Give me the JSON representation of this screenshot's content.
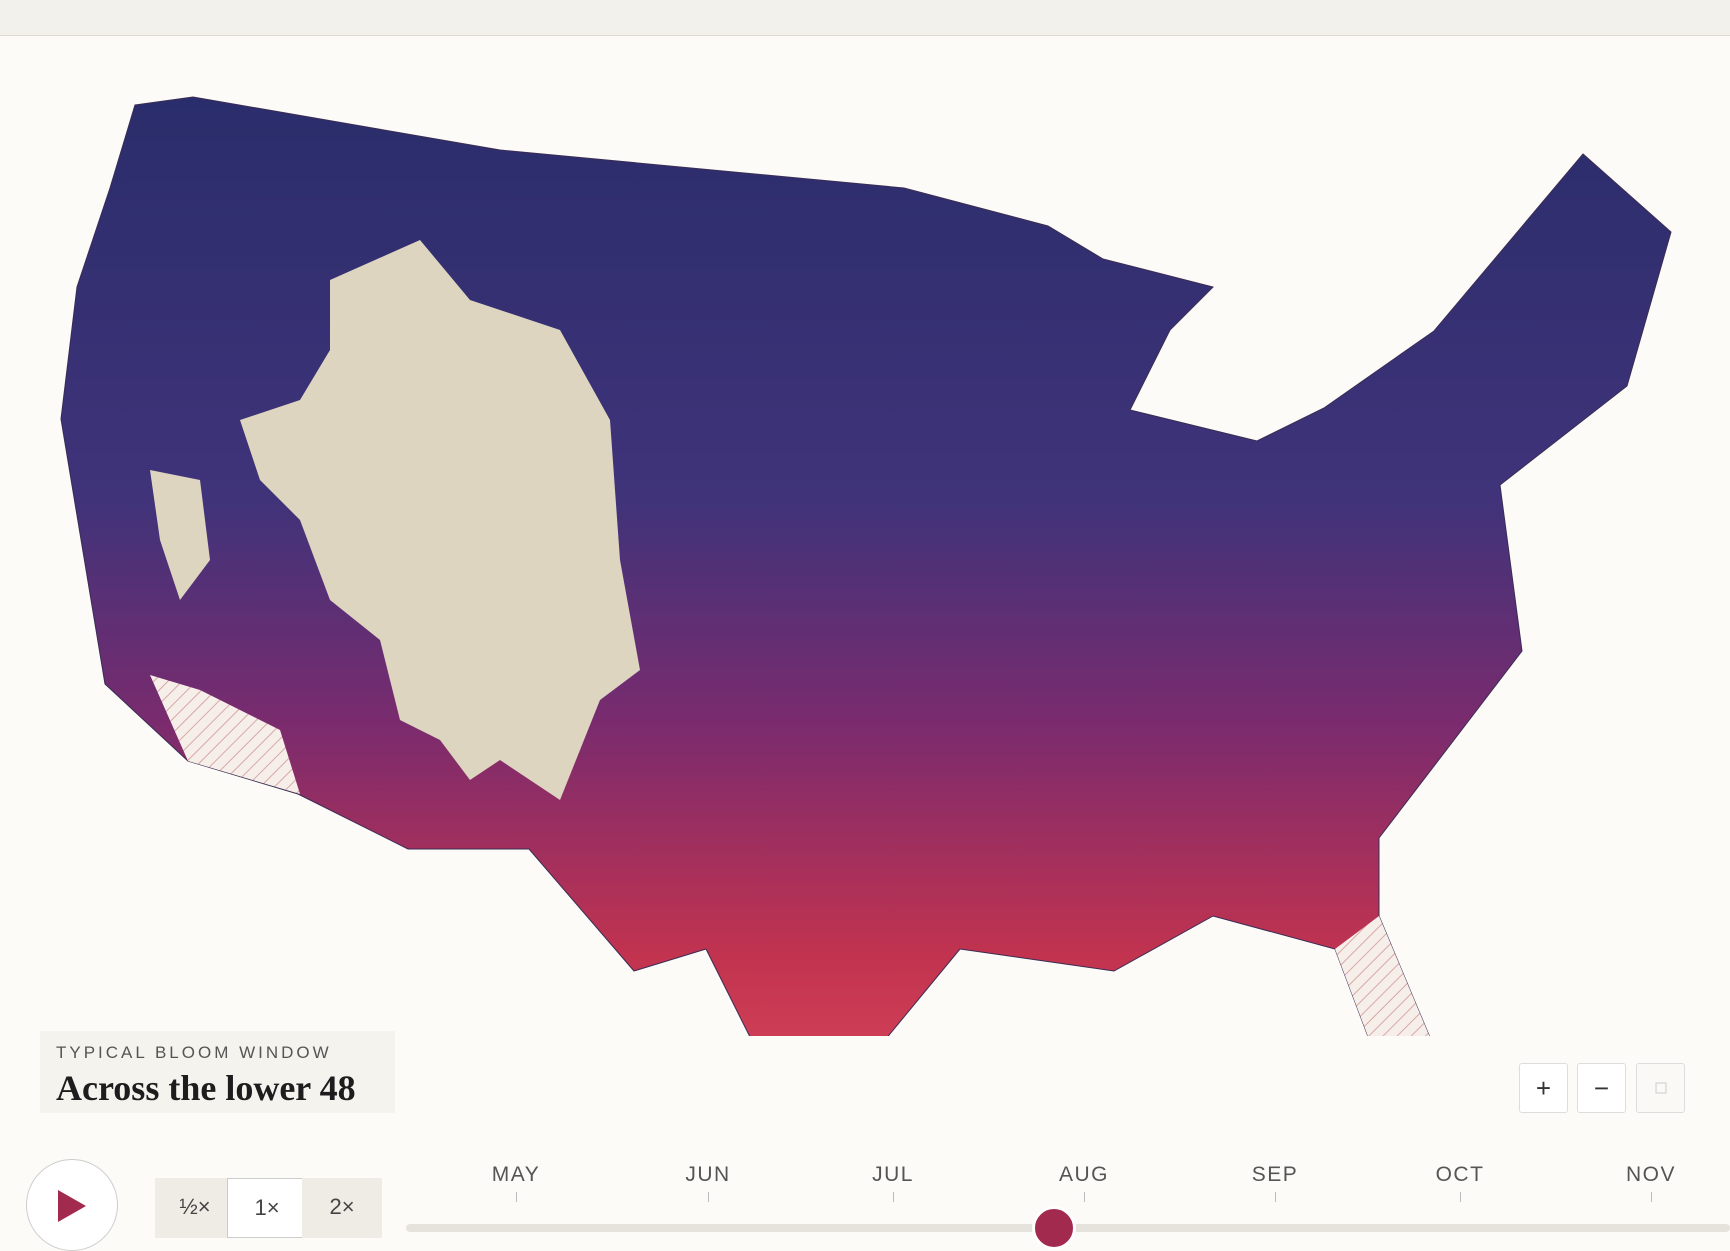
{
  "legend": {
    "eyebrow": "TYPICAL BLOOM WINDOW",
    "title": "Across the lower 48"
  },
  "speed_buttons": [
    "½×",
    "1×",
    "2×"
  ],
  "zoom_buttons": [
    "+",
    "−"
  ],
  "timeline": {
    "months": [
      "MAY",
      "JUN",
      "JUL",
      "AUG",
      "SEP",
      "OCT",
      "NOV"
    ]
  }
}
